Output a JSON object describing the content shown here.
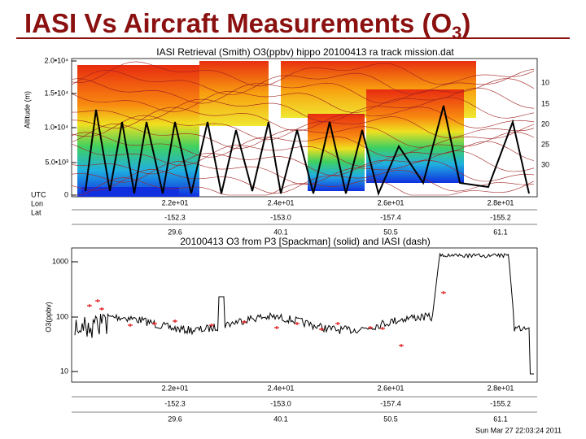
{
  "title": {
    "text": "IASI Vs Aircraft Measurements (O",
    "sub": "3",
    "end": ")"
  },
  "top_panel": {
    "title": "IASI Retrieval (Smith) O3(ppbv) hippo  20100413  ra  track  mission.dat",
    "y_label": "Altitude (m)",
    "y_ticks": [
      "2.0•10⁴",
      "1.5•10⁴",
      "1.0•10⁴",
      "5.0•10³",
      "0"
    ],
    "right_ticks": [
      "10",
      "15",
      "20",
      "25",
      "30"
    ],
    "row_labels": [
      "UTC",
      "Lon",
      "Lat"
    ],
    "utc": [
      "2.2e+01",
      "2.4e+01",
      "2.6e+01",
      "2.8e+01"
    ],
    "lon": [
      "-152.3",
      "-153.0",
      "-157.4",
      "-155.2"
    ],
    "lat": [
      "29.6",
      "40.1",
      "50.5",
      "61.1"
    ]
  },
  "bottom_panel": {
    "title": "20100413 O3 from P3 [Spackman] (solid) and IASI (dash)",
    "y_label": "O3(ppbv)",
    "y_ticks": [
      "1000",
      "100",
      "10"
    ],
    "utc": [
      "2.2e+01",
      "2.4e+01",
      "2.6e+01",
      "2.8e+01"
    ],
    "lon": [
      "-152.3",
      "-153.0",
      "-157.4",
      "-155.2"
    ],
    "lat": [
      "29.6",
      "40.1",
      "50.5",
      "61.1"
    ]
  },
  "footer": "Sun Mar 27 22:03:24 2011"
}
